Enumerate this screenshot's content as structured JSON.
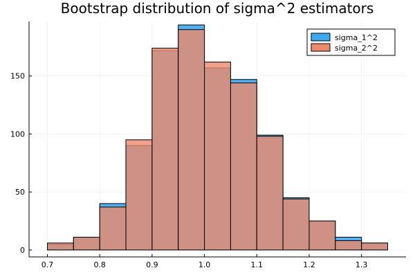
{
  "chart_data": {
    "type": "bar",
    "title": "Bootstrap distribution of sigma^2 estimators",
    "xlabel": "",
    "ylabel": "",
    "xlim": [
      0.665,
      1.385
    ],
    "ylim": [
      -6,
      197
    ],
    "xticks": [
      0.7,
      0.8,
      0.9,
      1.0,
      1.1,
      1.2,
      1.3
    ],
    "xtick_labels": [
      "0.7",
      "0.8",
      "0.9",
      "1.0",
      "1.1",
      "1.2",
      "1.3"
    ],
    "yticks": [
      0,
      50,
      100,
      150
    ],
    "ytick_labels": [
      "0",
      "50",
      "100",
      "150"
    ],
    "grid": true,
    "legend_position": "top-right",
    "bin_edges": [
      0.7,
      0.75,
      0.8,
      0.85,
      0.9,
      0.95,
      1.0,
      1.05,
      1.1,
      1.15,
      1.2,
      1.25,
      1.3,
      1.35
    ],
    "series": [
      {
        "name": "sigma_1^2",
        "color": "#3da7f0",
        "values": [
          5,
          11,
          40,
          90,
          172,
          194,
          157,
          147,
          99,
          45,
          25,
          11,
          6
        ]
      },
      {
        "name": "sigma_2^2",
        "color": "#ee8a6c",
        "values": [
          6,
          11,
          37,
          95,
          174,
          190,
          162,
          144,
          98,
          44,
          25,
          8,
          6
        ]
      }
    ],
    "overlap_color": "#b2877a"
  }
}
